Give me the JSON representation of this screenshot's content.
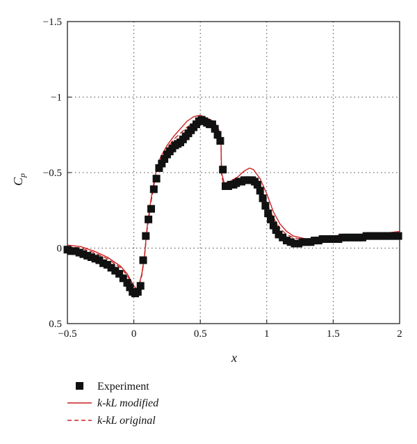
{
  "chart_data": {
    "type": "line",
    "xlabel": "x",
    "ylabel": "C",
    "ylabel_sub": "p",
    "xlim": [
      -0.5,
      2
    ],
    "ylim": [
      -1.5,
      0.5
    ],
    "y_inverted": true,
    "grid": true,
    "xticks": [
      -0.5,
      0,
      0.5,
      1,
      1.5,
      2
    ],
    "yticks": [
      -1.5,
      -1,
      -0.5,
      0,
      0.5
    ],
    "xtick_labels": [
      "−0.5",
      "0",
      "0.5",
      "1",
      "1.5",
      "2"
    ],
    "ytick_labels": [
      "−1.5",
      "−1",
      "−0.5",
      "0",
      "0.5"
    ],
    "legend_position": "bottom-left",
    "series": [
      {
        "name": "Experiment",
        "style": "square-marker",
        "color": "#111111",
        "x": [
          -0.5,
          -0.47,
          -0.44,
          -0.41,
          -0.38,
          -0.35,
          -0.32,
          -0.29,
          -0.26,
          -0.23,
          -0.2,
          -0.17,
          -0.14,
          -0.11,
          -0.08,
          -0.05,
          -0.03,
          -0.01,
          0.01,
          0.03,
          0.05,
          0.07,
          0.09,
          0.11,
          0.13,
          0.15,
          0.17,
          0.19,
          0.21,
          0.23,
          0.25,
          0.27,
          0.29,
          0.31,
          0.33,
          0.35,
          0.37,
          0.39,
          0.41,
          0.43,
          0.45,
          0.47,
          0.49,
          0.51,
          0.53,
          0.55,
          0.57,
          0.59,
          0.61,
          0.63,
          0.65,
          0.67,
          0.69,
          0.71,
          0.73,
          0.75,
          0.77,
          0.79,
          0.81,
          0.83,
          0.85,
          0.87,
          0.89,
          0.91,
          0.93,
          0.95,
          0.97,
          0.99,
          1.01,
          1.03,
          1.05,
          1.07,
          1.09,
          1.12,
          1.15,
          1.18,
          1.21,
          1.24,
          1.27,
          1.3,
          1.33,
          1.36,
          1.39,
          1.42,
          1.45,
          1.48,
          1.51,
          1.54,
          1.57,
          1.6,
          1.63,
          1.66,
          1.69,
          1.72,
          1.75,
          1.78,
          1.81,
          1.84,
          1.87,
          1.9,
          1.93,
          1.96,
          1.99
        ],
        "y": [
          0.01,
          0.02,
          0.02,
          0.03,
          0.04,
          0.05,
          0.06,
          0.07,
          0.08,
          0.1,
          0.11,
          0.13,
          0.15,
          0.17,
          0.2,
          0.23,
          0.26,
          0.29,
          0.3,
          0.29,
          0.25,
          0.08,
          -0.08,
          -0.19,
          -0.26,
          -0.39,
          -0.46,
          -0.53,
          -0.56,
          -0.59,
          -0.62,
          -0.64,
          -0.66,
          -0.68,
          -0.69,
          -0.7,
          -0.72,
          -0.74,
          -0.76,
          -0.78,
          -0.8,
          -0.82,
          -0.84,
          -0.85,
          -0.84,
          -0.83,
          -0.82,
          -0.82,
          -0.79,
          -0.75,
          -0.71,
          -0.52,
          -0.41,
          -0.41,
          -0.42,
          -0.42,
          -0.43,
          -0.44,
          -0.44,
          -0.45,
          -0.45,
          -0.45,
          -0.45,
          -0.44,
          -0.42,
          -0.38,
          -0.33,
          -0.28,
          -0.23,
          -0.19,
          -0.15,
          -0.12,
          -0.09,
          -0.07,
          -0.05,
          -0.04,
          -0.03,
          -0.03,
          -0.04,
          -0.04,
          -0.04,
          -0.05,
          -0.05,
          -0.06,
          -0.06,
          -0.06,
          -0.06,
          -0.06,
          -0.07,
          -0.07,
          -0.07,
          -0.07,
          -0.07,
          -0.07,
          -0.08,
          -0.08,
          -0.08,
          -0.08,
          -0.08,
          -0.08,
          -0.08,
          -0.08,
          -0.08
        ]
      },
      {
        "name": "k-kL modified",
        "style": "solid",
        "color": "#cc1f1f",
        "x": [
          -0.5,
          -0.4,
          -0.3,
          -0.2,
          -0.1,
          -0.05,
          0,
          0.02,
          0.04,
          0.06,
          0.08,
          0.1,
          0.13,
          0.16,
          0.2,
          0.25,
          0.3,
          0.35,
          0.4,
          0.45,
          0.5,
          0.55,
          0.6,
          0.63,
          0.655,
          0.66,
          0.68,
          0.72,
          0.78,
          0.83,
          0.87,
          0.9,
          0.95,
          1.0,
          1.05,
          1.1,
          1.15,
          1.2,
          1.3,
          1.4,
          1.5,
          1.6,
          1.7,
          1.8,
          1.9,
          2.0
        ],
        "y": [
          -0.02,
          -0.01,
          0.02,
          0.06,
          0.12,
          0.17,
          0.25,
          0.27,
          0.24,
          0.17,
          0.05,
          -0.14,
          -0.33,
          -0.48,
          -0.6,
          -0.68,
          -0.74,
          -0.79,
          -0.84,
          -0.87,
          -0.88,
          -0.86,
          -0.84,
          -0.8,
          -0.75,
          -0.5,
          -0.43,
          -0.44,
          -0.47,
          -0.51,
          -0.53,
          -0.52,
          -0.46,
          -0.36,
          -0.24,
          -0.16,
          -0.11,
          -0.08,
          -0.06,
          -0.07,
          -0.08,
          -0.09,
          -0.09,
          -0.1,
          -0.1,
          -0.11
        ]
      },
      {
        "name": "k-kL original",
        "style": "dashed",
        "color": "#cc1f1f",
        "x": [
          -0.5,
          -0.4,
          -0.3,
          -0.2,
          -0.1,
          -0.05,
          0,
          0.02,
          0.04,
          0.06,
          0.08,
          0.1,
          0.13,
          0.16,
          0.2,
          0.25,
          0.3,
          0.35,
          0.4,
          0.45,
          0.5,
          0.55,
          0.6,
          0.63,
          0.655,
          0.66,
          0.68,
          0.72,
          0.78,
          0.83,
          0.87,
          0.9,
          0.95,
          1.0,
          1.05,
          1.1,
          1.15,
          1.2,
          1.3,
          1.4,
          1.5,
          1.6,
          1.7,
          1.8,
          1.9,
          2.0
        ],
        "y": [
          -0.01,
          0.0,
          0.03,
          0.07,
          0.13,
          0.18,
          0.26,
          0.28,
          0.25,
          0.18,
          0.06,
          -0.12,
          -0.31,
          -0.46,
          -0.58,
          -0.66,
          -0.72,
          -0.76,
          -0.8,
          -0.83,
          -0.84,
          -0.83,
          -0.8,
          -0.77,
          -0.72,
          -0.48,
          -0.41,
          -0.42,
          -0.44,
          -0.46,
          -0.47,
          -0.46,
          -0.4,
          -0.3,
          -0.2,
          -0.13,
          -0.09,
          -0.07,
          -0.05,
          -0.06,
          -0.07,
          -0.07,
          -0.08,
          -0.08,
          -0.09,
          -0.09
        ]
      }
    ]
  }
}
